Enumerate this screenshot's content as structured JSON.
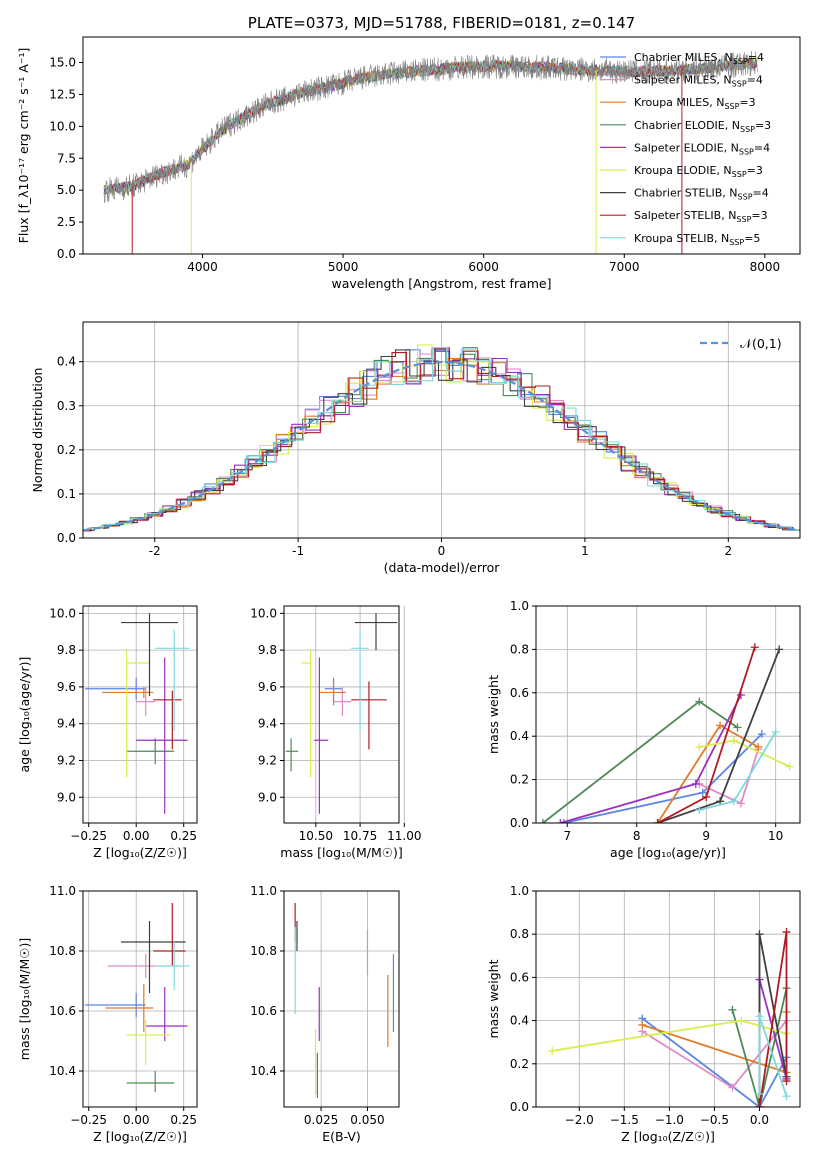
{
  "chart_data": [
    {
      "type": "line",
      "title": "PLATE=0373, MJD=51788, FIBERID=0181, z=0.147",
      "xlabel": "wavelength [Angstrom, rest frame]",
      "ylabel": "Flux [f_λ10⁻¹⁷ erg cm⁻² s⁻¹ A⁻¹]",
      "xlim": [
        3150,
        8250
      ],
      "ylim": [
        0,
        17
      ],
      "xticks": [
        4000,
        5000,
        6000,
        7000,
        8000
      ],
      "yticks": [
        0.0,
        2.5,
        5.0,
        7.5,
        10.0,
        12.5,
        15.0
      ],
      "legend_position": "right",
      "series": [
        {
          "name": "Chabrier MILES, N_SSP=4",
          "color": "#5b86e5"
        },
        {
          "name": "Salpeter MILES, N_SSP=4",
          "color": "#e08ac8"
        },
        {
          "name": "Kroupa MILES, N_SSP=3",
          "color": "#e07b2a"
        },
        {
          "name": "Chabrier ELODIE, N_SSP=3",
          "color": "#4d8a55"
        },
        {
          "name": "Salpeter ELODIE, N_SSP=4",
          "color": "#9b2fc0"
        },
        {
          "name": "Kroupa ELODIE, N_SSP=3",
          "color": "#d9ec50"
        },
        {
          "name": "Chabrier STELIB, N_SSP=4",
          "color": "#404040"
        },
        {
          "name": "Salpeter STELIB, N_SSP=3",
          "color": "#b01c22"
        },
        {
          "name": "Kroupa STELIB, N_SSP=5",
          "color": "#7fd8dd"
        }
      ],
      "data_line_color": "#808080",
      "continuum": {
        "x": [
          3300,
          3500,
          3700,
          3900,
          4000,
          4100,
          4200,
          4300,
          4400,
          4500,
          4600,
          4700,
          4800,
          4900,
          5000,
          5100,
          5200,
          5400,
          5600,
          5800,
          6000,
          6200,
          6400,
          6600,
          6800,
          7000,
          7200,
          7400,
          7600,
          7800,
          7950
        ],
        "y": [
          5.0,
          5.3,
          6.3,
          7.0,
          8.2,
          9.3,
          10.2,
          10.8,
          11.4,
          11.9,
          12.2,
          12.6,
          12.9,
          13.1,
          13.4,
          13.7,
          13.9,
          14.2,
          14.4,
          14.6,
          14.7,
          14.7,
          14.6,
          14.5,
          14.4,
          14.3,
          14.3,
          14.4,
          14.6,
          14.8,
          15.0
        ]
      },
      "spikes": [
        {
          "x": 3500,
          "color": "#b01c22"
        },
        {
          "x": 3920,
          "color": "#d9ec50"
        },
        {
          "x": 6800,
          "color": "#d9ec50"
        },
        {
          "x": 7410,
          "color": "#b01c22"
        }
      ]
    },
    {
      "type": "step",
      "xlabel": "(data-model)/error",
      "ylabel": "Normed distribution",
      "xlim": [
        -2.5,
        2.5
      ],
      "ylim": [
        0,
        0.49
      ],
      "xticks": [
        -2,
        -1,
        0,
        1,
        2
      ],
      "yticks": [
        0.0,
        0.1,
        0.2,
        0.3,
        0.4
      ],
      "grid": true,
      "legend": "𝒩(0,1)",
      "legend_position": "top-right",
      "reference_curve": {
        "name": "𝒩(0,1)",
        "mean": 0,
        "sigma": 1,
        "color": "#5b8fd6"
      },
      "bin_width": 0.1
    },
    {
      "type": "scatter",
      "xlabel": "Z [log₁₀(Z/Z☉)]",
      "ylabel": "age [log₁₀(age/yr)]",
      "xlim": [
        -0.28,
        0.32
      ],
      "ylim": [
        8.86,
        10.04
      ],
      "xticks": [
        -0.25,
        0.0,
        0.25
      ],
      "xtick_labels": [
        "−0.25",
        "0.00",
        "0.25"
      ],
      "yticks": [
        9.0,
        9.2,
        9.4,
        9.6,
        9.8,
        10.0
      ],
      "grid": true,
      "errorbars": [
        {
          "x": 0.0,
          "y": 9.59,
          "xerr": [
            0.27,
            0.05
          ],
          "yerr": [
            0.06,
            0.06
          ],
          "color": "#5b86e5"
        },
        {
          "x": 0.05,
          "y": 9.52,
          "xerr": [
            0.05,
            0.05
          ],
          "yerr": [
            0.08,
            0.08
          ],
          "color": "#e08ac8"
        },
        {
          "x": 0.04,
          "y": 9.57,
          "xerr": [
            0.22,
            0.05
          ],
          "yerr": [
            0.03,
            0.03
          ],
          "color": "#e07b2a"
        },
        {
          "x": 0.1,
          "y": 9.25,
          "xerr": [
            0.15,
            0.1
          ],
          "yerr": [
            0.07,
            0.07
          ],
          "color": "#4d8a55"
        },
        {
          "x": 0.15,
          "y": 9.31,
          "xerr": [
            0.15,
            0.12
          ],
          "yerr": [
            0.4,
            0.45
          ],
          "color": "#9b2fc0"
        },
        {
          "x": -0.05,
          "y": 9.73,
          "xerr": [
            0.0,
            0.12
          ],
          "yerr": [
            0.62,
            0.07
          ],
          "color": "#d9ec50"
        },
        {
          "x": 0.07,
          "y": 9.95,
          "xerr": [
            0.15,
            0.15
          ],
          "yerr": [
            0.4,
            0.05
          ],
          "color": "#404040"
        },
        {
          "x": 0.19,
          "y": 9.53,
          "xerr": [
            0.1,
            0.05
          ],
          "yerr": [
            0.27,
            0.05
          ],
          "color": "#b01c22"
        },
        {
          "x": 0.2,
          "y": 9.81,
          "xerr": [
            0.1,
            0.08
          ],
          "yerr": [
            0.45,
            0.1
          ],
          "color": "#7fd8dd"
        }
      ]
    },
    {
      "type": "scatter",
      "xlabel": "mass [log₁₀(M/M☉)]",
      "xlim": [
        10.32,
        10.97
      ],
      "ylim": [
        8.86,
        10.04
      ],
      "xticks": [
        10.5,
        10.75,
        11.0
      ],
      "xtick_labels": [
        "10.50",
        "10.75",
        "11.00"
      ],
      "yticks": [
        9.0,
        9.2,
        9.4,
        9.6,
        9.8,
        10.0
      ],
      "grid": true,
      "errorbars": [
        {
          "x": 10.6,
          "y": 9.59,
          "xerr": [
            0.05,
            0.05
          ],
          "yerr": [
            0.06,
            0.06
          ],
          "color": "#5b86e5"
        },
        {
          "x": 10.65,
          "y": 9.52,
          "xerr": [
            0.05,
            0.05
          ],
          "yerr": [
            0.08,
            0.08
          ],
          "color": "#e08ac8"
        },
        {
          "x": 10.6,
          "y": 9.57,
          "xerr": [
            0.08,
            0.07
          ],
          "yerr": [
            0.07,
            0.07
          ],
          "color": "#e07b2a"
        },
        {
          "x": 10.36,
          "y": 9.25,
          "xerr": [
            0.03,
            0.04
          ],
          "yerr": [
            0.11,
            0.07
          ],
          "color": "#4d8a55"
        },
        {
          "x": 10.52,
          "y": 9.31,
          "xerr": [
            0.03,
            0.05
          ],
          "yerr": [
            0.4,
            0.45
          ],
          "color": "#9b2fc0"
        },
        {
          "x": 10.47,
          "y": 9.73,
          "xerr": [
            0.05,
            0.0
          ],
          "yerr": [
            0.62,
            0.07
          ],
          "color": "#d9ec50"
        },
        {
          "x": 10.84,
          "y": 9.95,
          "xerr": [
            0.12,
            0.12
          ],
          "yerr": [
            0.15,
            0.05
          ],
          "color": "#404040"
        },
        {
          "x": 10.8,
          "y": 9.53,
          "xerr": [
            0.1,
            0.1
          ],
          "yerr": [
            0.27,
            0.1
          ],
          "color": "#b01c22"
        },
        {
          "x": 10.75,
          "y": 9.81,
          "xerr": [
            0.05,
            0.05
          ],
          "yerr": [
            0.45,
            0.1
          ],
          "color": "#7fd8dd"
        }
      ]
    },
    {
      "type": "line",
      "xlabel": "age [log₁₀(age/yr)]",
      "ylabel": "mass weight",
      "xlim": [
        6.55,
        10.35
      ],
      "ylim": [
        0.0,
        1.0
      ],
      "xticks": [
        7,
        8,
        9,
        10
      ],
      "yticks": [
        0.0,
        0.2,
        0.4,
        0.6,
        0.8,
        1.0
      ],
      "grid": true,
      "series": [
        {
          "color": "#5b86e5",
          "x": [
            6.95,
            8.95,
            9.8
          ],
          "y": [
            0.0,
            0.14,
            0.41
          ]
        },
        {
          "color": "#e08ac8",
          "x": [
            8.9,
            9.5,
            9.75
          ],
          "y": [
            0.18,
            0.09,
            0.34
          ]
        },
        {
          "color": "#e07b2a",
          "x": [
            8.3,
            9.2,
            9.75
          ],
          "y": [
            0.0,
            0.45,
            0.35
          ]
        },
        {
          "color": "#4d8a55",
          "x": [
            6.65,
            8.9,
            9.45
          ],
          "y": [
            0.0,
            0.56,
            0.44
          ]
        },
        {
          "color": "#9b2fc0",
          "x": [
            6.9,
            8.85,
            9.5
          ],
          "y": [
            0.0,
            0.18,
            0.59
          ]
        },
        {
          "color": "#d9ec50",
          "x": [
            8.9,
            9.4,
            10.2
          ],
          "y": [
            0.35,
            0.38,
            0.26
          ]
        },
        {
          "color": "#404040",
          "x": [
            8.3,
            9.2,
            10.05
          ],
          "y": [
            0.0,
            0.1,
            0.8
          ]
        },
        {
          "color": "#b01c22",
          "x": [
            8.3,
            9.0,
            9.7
          ],
          "y": [
            0.0,
            0.12,
            0.81
          ]
        },
        {
          "color": "#7fd8dd",
          "x": [
            8.9,
            9.4,
            10.0
          ],
          "y": [
            0.06,
            0.1,
            0.42
          ]
        }
      ]
    },
    {
      "type": "scatter",
      "xlabel": "Z [log₁₀(Z/Z☉)]",
      "ylabel": "mass [log₁₀(M/M☉)]",
      "xlim": [
        -0.28,
        0.32
      ],
      "ylim": [
        10.28,
        11.0
      ],
      "xticks": [
        -0.25,
        0.0,
        0.25
      ],
      "xtick_labels": [
        "−0.25",
        "0.00",
        "0.25"
      ],
      "yticks": [
        10.4,
        10.6,
        10.8,
        11.0
      ],
      "grid": true,
      "errorbars": [
        {
          "x": 0.0,
          "y": 10.62,
          "xerr": [
            0.27,
            0.05
          ],
          "yerr": [
            0.04,
            0.04
          ],
          "color": "#5b86e5"
        },
        {
          "x": 0.05,
          "y": 10.75,
          "xerr": [
            0.2,
            0.05
          ],
          "yerr": [
            0.04,
            0.04
          ],
          "color": "#e08ac8"
        },
        {
          "x": 0.04,
          "y": 10.61,
          "xerr": [
            0.2,
            0.05
          ],
          "yerr": [
            0.08,
            0.08
          ],
          "color": "#e07b2a"
        },
        {
          "x": 0.1,
          "y": 10.36,
          "xerr": [
            0.15,
            0.1
          ],
          "yerr": [
            0.03,
            0.04
          ],
          "color": "#4d8a55"
        },
        {
          "x": 0.15,
          "y": 10.55,
          "xerr": [
            0.1,
            0.12
          ],
          "yerr": [
            0.05,
            0.13
          ],
          "color": "#9b2fc0"
        },
        {
          "x": 0.05,
          "y": 10.52,
          "xerr": [
            0.1,
            0.13
          ],
          "yerr": [
            0.1,
            0.05
          ],
          "color": "#d9ec50"
        },
        {
          "x": 0.07,
          "y": 10.83,
          "xerr": [
            0.15,
            0.19
          ],
          "yerr": [
            0.17,
            0.07
          ],
          "color": "#404040"
        },
        {
          "x": 0.19,
          "y": 10.8,
          "xerr": [
            0.1,
            0.07
          ],
          "yerr": [
            0.05,
            0.16
          ],
          "color": "#b01c22"
        },
        {
          "x": 0.2,
          "y": 10.75,
          "xerr": [
            0.1,
            0.08
          ],
          "yerr": [
            0.08,
            0.08
          ],
          "color": "#7fd8dd"
        }
      ]
    },
    {
      "type": "scatter",
      "xlabel": "E(B-V)",
      "xlim": [
        0.005,
        0.067
      ],
      "ylim": [
        10.28,
        11.0
      ],
      "xticks": [
        0.025,
        0.05
      ],
      "xtick_labels": [
        "0.025",
        "0.050"
      ],
      "yticks": [
        10.4,
        10.6,
        10.8,
        11.0
      ],
      "grid": true,
      "errorbars": [
        {
          "x": 0.064,
          "y": 10.62,
          "yerr": [
            0.09,
            0.17
          ],
          "color": "#5b86e5"
        },
        {
          "x": 0.05,
          "y": 10.77,
          "yerr": [
            0.05,
            0.1
          ],
          "color": "#e08ac8"
        },
        {
          "x": 0.061,
          "y": 10.62,
          "yerr": [
            0.14,
            0.1
          ],
          "color": "#e07b2a"
        },
        {
          "x": 0.023,
          "y": 10.4,
          "yerr": [
            0.09,
            0.06
          ],
          "color": "#4d8a55"
        },
        {
          "x": 0.024,
          "y": 10.55,
          "yerr": [
            0.05,
            0.13
          ],
          "color": "#9b2fc0"
        },
        {
          "x": 0.022,
          "y": 10.45,
          "yerr": [
            0.13,
            0.09
          ],
          "color": "#d9ec50"
        },
        {
          "x": 0.012,
          "y": 10.85,
          "yerr": [
            0.05,
            0.05
          ],
          "color": "#404040"
        },
        {
          "x": 0.011,
          "y": 10.87,
          "yerr": [
            0.04,
            0.09
          ],
          "color": "#b01c22"
        },
        {
          "x": 0.011,
          "y": 10.75,
          "yerr": [
            0.16,
            0.13
          ],
          "color": "#7fd8dd"
        }
      ]
    },
    {
      "type": "line",
      "xlabel": "Z [log₁₀(Z/Z☉)]",
      "ylabel": "mass weight",
      "xlim": [
        -2.48,
        0.45
      ],
      "ylim": [
        0.0,
        1.0
      ],
      "xticks": [
        -2.0,
        -1.5,
        -1.0,
        -0.5,
        0.0
      ],
      "xtick_labels": [
        "−2.0",
        "−1.5",
        "−1.0",
        "−0.5",
        "0.0"
      ],
      "yticks": [
        0.0,
        0.2,
        0.4,
        0.6,
        0.8,
        1.0
      ],
      "grid": true,
      "series": [
        {
          "color": "#5b86e5",
          "x": [
            -1.3,
            0.0,
            0.3
          ],
          "y": [
            0.41,
            0.0,
            0.23
          ]
        },
        {
          "color": "#e08ac8",
          "x": [
            -1.3,
            -0.3,
            0.3
          ],
          "y": [
            0.35,
            0.09,
            0.4
          ]
        },
        {
          "color": "#e07b2a",
          "x": [
            -1.3,
            0.3,
            0.3
          ],
          "y": [
            0.38,
            0.16,
            0.44
          ]
        },
        {
          "color": "#4d8a55",
          "x": [
            -0.3,
            0.0,
            0.3
          ],
          "y": [
            0.45,
            0.0,
            0.55
          ]
        },
        {
          "color": "#9b2fc0",
          "x": [
            0.0,
            0.0,
            0.3
          ],
          "y": [
            0.0,
            0.59,
            0.13
          ]
        },
        {
          "color": "#d9ec50",
          "x": [
            -2.3,
            -0.2,
            0.3
          ],
          "y": [
            0.26,
            0.4,
            0.34
          ]
        },
        {
          "color": "#404040",
          "x": [
            0.0,
            0.0,
            0.3
          ],
          "y": [
            0.0,
            0.8,
            0.14
          ]
        },
        {
          "color": "#b01c22",
          "x": [
            0.0,
            0.3,
            0.3
          ],
          "y": [
            0.0,
            0.81,
            0.12
          ]
        },
        {
          "color": "#7fd8dd",
          "x": [
            0.0,
            0.0,
            0.3
          ],
          "y": [
            0.06,
            0.42,
            0.05
          ]
        }
      ]
    }
  ]
}
